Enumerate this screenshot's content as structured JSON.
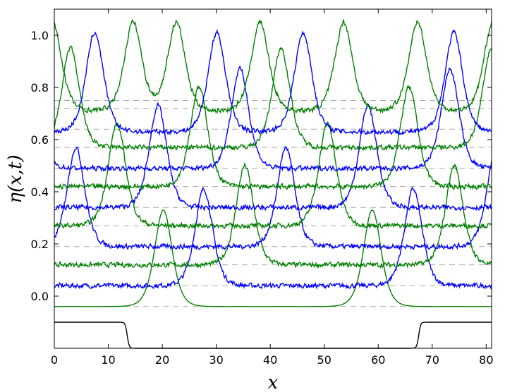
{
  "chart_data": {
    "type": "line",
    "title": "",
    "xlabel": "x",
    "ylabel": "η(x,t)",
    "xlim": [
      0,
      81
    ],
    "ylim": [
      -0.2,
      1.1
    ],
    "x_ticks": [
      0,
      10,
      20,
      30,
      40,
      50,
      60,
      70,
      80
    ],
    "x_tick_labels": [
      "0",
      "10",
      "20",
      "30",
      "40",
      "50",
      "60",
      "70",
      "80"
    ],
    "y_ticks": [
      0.0,
      0.2,
      0.4,
      0.6,
      0.8,
      1.0
    ],
    "y_tick_labels": [
      "0.0",
      "0.2",
      "0.4",
      "0.6",
      "0.8",
      "1.0"
    ],
    "grid": false,
    "legend": "none",
    "colors": {
      "blue": "#0000ff",
      "green": "#008000",
      "reference": "#aaaaaa",
      "bottom": "#000000"
    },
    "series": [
      {
        "color": "green",
        "baseline": -0.04,
        "peak_x": [
          20.2,
          58.9
        ],
        "peak_height": 0.37,
        "noise": 0.0
      },
      {
        "color": "blue",
        "baseline": 0.04,
        "peak_x": [
          27.7,
          66.5
        ],
        "peak_height": 0.37,
        "noise": 0.012
      },
      {
        "color": "green",
        "baseline": 0.12,
        "peak_x": [
          35.3,
          74.1
        ],
        "peak_height": 0.38,
        "noise": 0.012
      },
      {
        "color": "blue",
        "baseline": 0.19,
        "peak_x": [
          4.0,
          42.9,
          81.8
        ],
        "peak_height": 0.38,
        "noise": 0.012
      },
      {
        "color": "green",
        "baseline": 0.27,
        "peak_x": [
          11.6,
          50.6
        ],
        "peak_height": 0.39,
        "noise": 0.012
      },
      {
        "color": "blue",
        "baseline": 0.34,
        "peak_x": [
          19.2,
          58.1
        ],
        "peak_height": 0.39,
        "noise": 0.012
      },
      {
        "color": "green",
        "baseline": 0.42,
        "peak_x": [
          26.8,
          65.7
        ],
        "peak_height": 0.38,
        "noise": 0.012
      },
      {
        "color": "blue",
        "baseline": 0.49,
        "peak_x": [
          -4.7,
          34.4,
          73.3
        ],
        "peak_height": 0.38,
        "noise": 0.012
      },
      {
        "color": "green",
        "baseline": 0.57,
        "peak_x": [
          3.0,
          42.0,
          81.0
        ],
        "peak_height": 0.38,
        "noise": 0.012
      },
      {
        "color": "blue",
        "baseline": 0.63,
        "peak_x": [
          7.5,
          30.1,
          46.1,
          74.0
        ],
        "peak_height": 0.38,
        "noise": 0.012
      },
      {
        "color": "green",
        "baseline": 0.71,
        "peak_x": [
          -0.3,
          14.6,
          22.6,
          38.1,
          53.6,
          67.3,
          81.2
        ],
        "peak_height": 0.34,
        "noise": 0.012
      }
    ],
    "reference_levels": [
      -0.04,
      0.04,
      0.12,
      0.19,
      0.27,
      0.34,
      0.42,
      0.49,
      0.57,
      0.64,
      0.72,
      0.75
    ],
    "bottom_profile": {
      "upper_level": -0.1,
      "lower_level": -0.2,
      "step_down_x": 13.5,
      "step_up_x": 67.5,
      "dotted_level": -0.2
    }
  }
}
